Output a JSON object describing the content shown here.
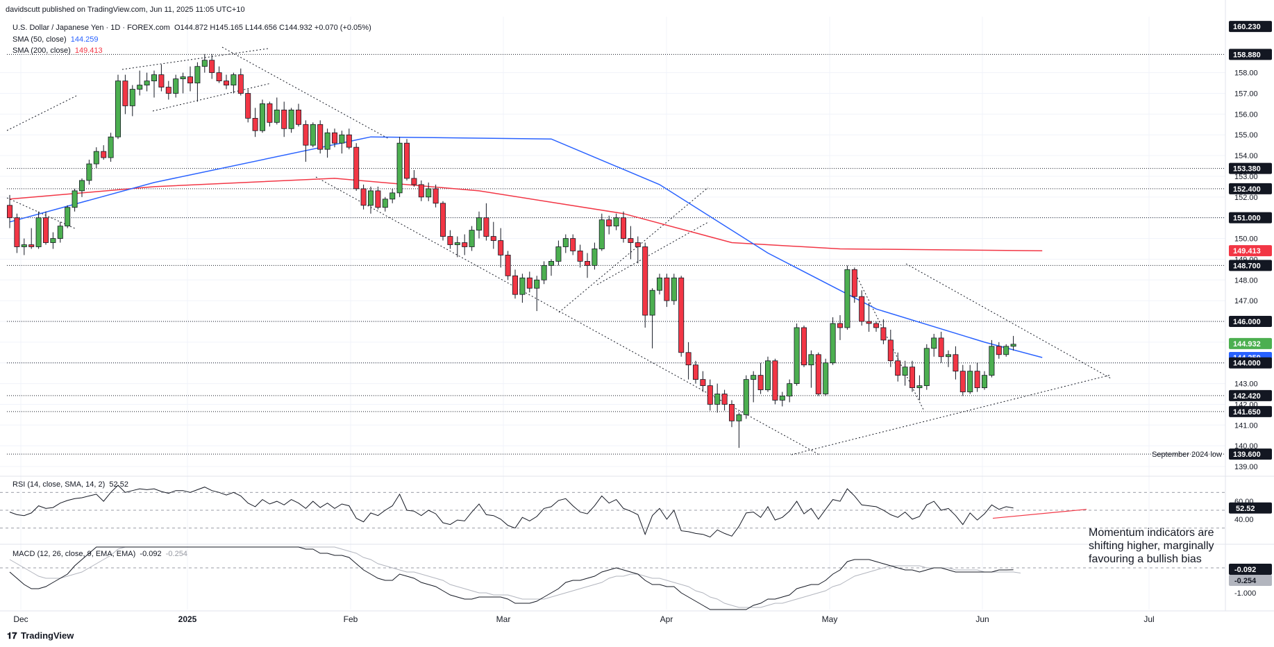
{
  "header": {
    "published": "davidscutt published on TradingView.com, Jun 11, 2025 11:05 UTC+10",
    "symbol": "U.S. Dollar / Japanese Yen · 1D · FOREX.com",
    "ohlc": "O144.872  H145.165  L144.656  C144.932  +0.070 (+0.05%)",
    "sma50_label": "SMA (50, close)",
    "sma50_value": "144.259",
    "sma200_label": "SMA (200, close)",
    "sma200_value": "149.413"
  },
  "rsi_label": "RSI (14, close, SMA, 14, 2)",
  "rsi_value": "52.52",
  "macd_label": "MACD (12, 26, close, 9, EMA, EMA)",
  "macd_value": "-0.092",
  "macd_signal_value": "-0.254",
  "note": "Momentum indicators are shifting higher, marginally favouring a bullish bias",
  "footer": "TradingView",
  "colors": {
    "up": "#4caf50",
    "down": "#f23645",
    "sma50": "#2962ff",
    "sma200": "#f23645",
    "rsi": "#131722",
    "macd": "#131722",
    "signal": "#b2b5be"
  },
  "chart_data": {
    "type": "candlestick",
    "price_axis_ticks": [
      139.0,
      140.0,
      141.0,
      142.0,
      143.0,
      144.0,
      145.0,
      146.0,
      147.0,
      148.0,
      149.0,
      150.0,
      151.0,
      152.0,
      153.0,
      154.0,
      155.0,
      156.0,
      157.0,
      158.0
    ],
    "price_range": [
      138.8,
      160.5
    ],
    "x_ticks": [
      "Dec",
      "2025",
      "Feb",
      "Mar",
      "Apr",
      "May",
      "Jun",
      "Jul"
    ],
    "price_labels": [
      {
        "value": 160.23,
        "text": "160.230"
      },
      {
        "value": 158.88,
        "text": "158.880"
      },
      {
        "value": 153.38,
        "text": "153.380"
      },
      {
        "value": 152.4,
        "text": "152.400"
      },
      {
        "value": 151.0,
        "text": "151.000"
      },
      {
        "value": 149.413,
        "text": "149.413",
        "highlight": "sma200"
      },
      {
        "value": 148.7,
        "text": "148.700"
      },
      {
        "value": 146.0,
        "text": "146.000"
      },
      {
        "value": 144.932,
        "text": "144.932",
        "highlight": "up"
      },
      {
        "value": 144.259,
        "text": "144.259",
        "highlight": "sma50"
      },
      {
        "value": 144.0,
        "text": "144.000"
      },
      {
        "value": 142.42,
        "text": "142.420"
      },
      {
        "value": 141.65,
        "text": "141.650"
      },
      {
        "value": 139.6,
        "text": "139.600"
      }
    ],
    "horizontal_levels": [
      158.88,
      153.38,
      152.4,
      151.0,
      148.7,
      146.0,
      144.0,
      142.42,
      141.65,
      139.6
    ],
    "annotation": {
      "text": "September 2024 low",
      "value": 139.6
    },
    "rsi_axis": [
      "60.00",
      "40.00"
    ],
    "rsi_current_label": "52.52",
    "macd_axis": [
      "-1.000"
    ],
    "macd_labels": [
      "-0.092",
      "-0.254"
    ],
    "candles": [
      [
        151.6,
        152.1,
        150.5,
        151.0
      ],
      [
        151.0,
        151.2,
        149.3,
        149.6
      ],
      [
        149.6,
        150.0,
        149.2,
        149.7
      ],
      [
        149.7,
        150.5,
        149.5,
        149.6
      ],
      [
        149.6,
        151.3,
        149.5,
        151.0
      ],
      [
        151.0,
        151.3,
        149.7,
        149.8
      ],
      [
        149.8,
        150.3,
        149.5,
        150.0
      ],
      [
        150.0,
        150.8,
        149.8,
        150.6
      ],
      [
        150.6,
        151.6,
        150.5,
        151.5
      ],
      [
        151.5,
        152.4,
        151.3,
        152.3
      ],
      [
        152.3,
        152.9,
        152.0,
        152.8
      ],
      [
        152.8,
        153.8,
        152.6,
        153.6
      ],
      [
        153.6,
        154.4,
        153.4,
        154.2
      ],
      [
        154.2,
        154.5,
        153.8,
        153.9
      ],
      [
        153.9,
        155.1,
        153.7,
        154.9
      ],
      [
        154.9,
        157.9,
        154.8,
        157.6
      ],
      [
        157.6,
        157.9,
        156.0,
        156.4
      ],
      [
        156.4,
        157.4,
        155.9,
        157.2
      ],
      [
        157.2,
        158.1,
        156.9,
        157.4
      ],
      [
        157.4,
        158.0,
        157.1,
        157.6
      ],
      [
        157.6,
        158.1,
        156.8,
        157.9
      ],
      [
        157.9,
        158.4,
        157.1,
        157.3
      ],
      [
        157.3,
        157.6,
        156.7,
        157.0
      ],
      [
        157.0,
        157.9,
        156.8,
        157.7
      ],
      [
        157.7,
        158.0,
        157.0,
        157.8
      ],
      [
        157.8,
        158.3,
        157.1,
        157.5
      ],
      [
        157.5,
        158.5,
        156.6,
        158.3
      ],
      [
        158.3,
        158.9,
        158.0,
        158.6
      ],
      [
        158.6,
        158.9,
        157.7,
        158.0
      ],
      [
        158.0,
        158.3,
        157.5,
        157.6
      ],
      [
        157.6,
        157.9,
        157.2,
        157.4
      ],
      [
        157.4,
        158.0,
        157.0,
        157.9
      ],
      [
        157.9,
        158.2,
        156.9,
        157.0
      ],
      [
        157.0,
        157.2,
        155.6,
        155.8
      ],
      [
        155.8,
        156.3,
        154.9,
        155.2
      ],
      [
        155.2,
        156.7,
        155.1,
        156.5
      ],
      [
        156.5,
        156.6,
        155.4,
        155.6
      ],
      [
        155.6,
        156.8,
        155.5,
        156.2
      ],
      [
        156.2,
        156.6,
        154.9,
        155.3
      ],
      [
        155.3,
        156.3,
        155.1,
        156.2
      ],
      [
        156.2,
        156.5,
        155.4,
        155.5
      ],
      [
        155.5,
        155.7,
        153.7,
        154.5
      ],
      [
        154.5,
        155.6,
        154.4,
        155.5
      ],
      [
        155.5,
        155.7,
        154.1,
        154.3
      ],
      [
        154.3,
        155.3,
        153.9,
        155.1
      ],
      [
        155.1,
        155.3,
        154.4,
        154.6
      ],
      [
        154.6,
        155.2,
        154.1,
        155.0
      ],
      [
        155.0,
        155.3,
        154.3,
        154.4
      ],
      [
        154.4,
        154.6,
        152.3,
        152.4
      ],
      [
        152.4,
        152.6,
        151.4,
        151.6
      ],
      [
        151.6,
        152.5,
        151.2,
        152.3
      ],
      [
        152.3,
        152.5,
        151.4,
        151.5
      ],
      [
        151.5,
        152.0,
        151.3,
        151.9
      ],
      [
        151.9,
        152.4,
        151.7,
        152.2
      ],
      [
        152.2,
        154.9,
        152.0,
        154.6
      ],
      [
        154.6,
        154.8,
        152.8,
        152.9
      ],
      [
        152.9,
        153.3,
        152.5,
        152.6
      ],
      [
        152.6,
        152.8,
        151.8,
        152.0
      ],
      [
        152.0,
        152.7,
        151.8,
        152.4
      ],
      [
        152.4,
        152.6,
        151.5,
        151.7
      ],
      [
        151.7,
        151.8,
        149.9,
        150.1
      ],
      [
        150.1,
        150.4,
        149.5,
        149.7
      ],
      [
        149.7,
        150.1,
        149.1,
        149.8
      ],
      [
        149.8,
        150.2,
        149.2,
        149.6
      ],
      [
        149.6,
        150.6,
        149.4,
        150.4
      ],
      [
        150.4,
        151.3,
        150.0,
        151.0
      ],
      [
        151.0,
        151.7,
        149.9,
        150.1
      ],
      [
        150.1,
        150.8,
        149.5,
        149.9
      ],
      [
        149.9,
        150.5,
        148.6,
        149.2
      ],
      [
        149.2,
        149.4,
        148.0,
        148.2
      ],
      [
        148.2,
        148.5,
        147.1,
        147.3
      ],
      [
        147.3,
        148.3,
        146.9,
        148.1
      ],
      [
        148.1,
        148.4,
        147.4,
        147.6
      ],
      [
        147.6,
        148.2,
        146.5,
        148.0
      ],
      [
        148.0,
        148.9,
        147.8,
        148.7
      ],
      [
        148.7,
        149.0,
        148.2,
        148.9
      ],
      [
        148.9,
        149.9,
        148.7,
        149.6
      ],
      [
        149.6,
        150.2,
        149.3,
        150.0
      ],
      [
        150.0,
        150.2,
        149.2,
        149.4
      ],
      [
        149.4,
        149.7,
        148.6,
        148.9
      ],
      [
        148.9,
        149.3,
        148.1,
        148.7
      ],
      [
        148.7,
        149.8,
        148.5,
        149.5
      ],
      [
        149.5,
        151.2,
        149.4,
        150.9
      ],
      [
        150.9,
        151.1,
        150.2,
        150.6
      ],
      [
        150.6,
        151.2,
        150.4,
        151.0
      ],
      [
        151.0,
        151.3,
        149.8,
        150.0
      ],
      [
        150.0,
        150.6,
        149.0,
        149.8
      ],
      [
        149.8,
        150.1,
        148.8,
        149.6
      ],
      [
        149.6,
        149.8,
        145.7,
        146.3
      ],
      [
        146.3,
        147.6,
        144.7,
        147.5
      ],
      [
        147.5,
        148.3,
        147.3,
        148.1
      ],
      [
        148.1,
        148.3,
        146.7,
        147.0
      ],
      [
        147.0,
        148.3,
        146.8,
        148.1
      ],
      [
        148.1,
        148.2,
        144.3,
        144.5
      ],
      [
        144.5,
        145.0,
        143.2,
        143.9
      ],
      [
        143.9,
        144.1,
        143.0,
        143.2
      ],
      [
        143.2,
        143.6,
        142.6,
        142.9
      ],
      [
        142.9,
        143.2,
        141.7,
        142.0
      ],
      [
        142.0,
        143.0,
        141.6,
        142.5
      ],
      [
        142.5,
        142.7,
        141.7,
        142.0
      ],
      [
        142.0,
        142.2,
        140.9,
        141.2
      ],
      [
        141.2,
        141.6,
        139.9,
        141.5
      ],
      [
        141.5,
        143.4,
        141.3,
        143.2
      ],
      [
        143.2,
        143.6,
        142.1,
        143.4
      ],
      [
        143.4,
        144.0,
        142.5,
        142.7
      ],
      [
        142.7,
        144.3,
        142.6,
        144.1
      ],
      [
        144.1,
        144.2,
        142.0,
        142.2
      ],
      [
        142.2,
        142.6,
        141.9,
        142.4
      ],
      [
        142.4,
        143.2,
        142.1,
        143.0
      ],
      [
        143.0,
        145.9,
        142.9,
        145.7
      ],
      [
        145.7,
        145.8,
        143.8,
        143.9
      ],
      [
        143.9,
        144.6,
        142.8,
        144.4
      ],
      [
        144.4,
        144.5,
        142.4,
        142.5
      ],
      [
        142.5,
        144.2,
        142.4,
        144.0
      ],
      [
        144.0,
        146.2,
        143.9,
        145.9
      ],
      [
        145.9,
        146.3,
        145.1,
        145.7
      ],
      [
        145.7,
        148.7,
        145.6,
        148.5
      ],
      [
        148.5,
        148.6,
        146.9,
        147.2
      ],
      [
        147.2,
        147.5,
        145.8,
        146.0
      ],
      [
        146.0,
        146.9,
        145.5,
        145.9
      ],
      [
        145.9,
        146.0,
        145.5,
        145.7
      ],
      [
        145.7,
        146.1,
        144.9,
        145.1
      ],
      [
        145.1,
        145.6,
        143.8,
        144.1
      ],
      [
        144.1,
        144.5,
        143.1,
        143.4
      ],
      [
        143.4,
        144.1,
        142.9,
        143.8
      ],
      [
        143.8,
        144.1,
        142.6,
        142.8
      ],
      [
        142.8,
        143.4,
        142.2,
        142.9
      ],
      [
        142.9,
        144.9,
        142.7,
        144.7
      ],
      [
        144.7,
        145.4,
        144.3,
        145.2
      ],
      [
        145.2,
        145.5,
        144.0,
        144.3
      ],
      [
        144.3,
        144.6,
        143.8,
        144.4
      ],
      [
        144.4,
        144.8,
        143.2,
        143.6
      ],
      [
        143.6,
        143.9,
        142.4,
        142.6
      ],
      [
        142.6,
        143.9,
        142.5,
        143.6
      ],
      [
        143.6,
        144.0,
        142.6,
        142.8
      ],
      [
        142.8,
        143.6,
        142.7,
        143.4
      ],
      [
        143.4,
        145.1,
        143.3,
        144.8
      ],
      [
        144.8,
        145.0,
        144.2,
        144.4
      ],
      [
        144.4,
        144.9,
        144.3,
        144.8
      ],
      [
        144.8,
        145.3,
        144.6,
        144.9
      ]
    ],
    "sma50": [
      [
        0,
        150.8
      ],
      [
        20,
        152.7
      ],
      [
        50,
        154.9
      ],
      [
        75,
        154.8
      ],
      [
        90,
        152.6
      ],
      [
        105,
        149.3
      ],
      [
        120,
        146.6
      ],
      [
        135,
        145.0
      ],
      [
        143,
        144.26
      ]
    ],
    "sma200": [
      [
        0,
        151.9
      ],
      [
        20,
        152.5
      ],
      [
        45,
        152.9
      ],
      [
        65,
        152.3
      ],
      [
        85,
        151.2
      ],
      [
        100,
        149.8
      ],
      [
        115,
        149.5
      ],
      [
        143,
        149.41
      ]
    ],
    "rsi": [
      48,
      45,
      44,
      47,
      55,
      52,
      53,
      58,
      61,
      63,
      64,
      66,
      68,
      60,
      70,
      78,
      70,
      72,
      74,
      73,
      74,
      71,
      69,
      72,
      72,
      70,
      73,
      76,
      72,
      70,
      67,
      70,
      66,
      58,
      54,
      62,
      57,
      60,
      56,
      62,
      58,
      52,
      60,
      53,
      58,
      52,
      57,
      55,
      41,
      37,
      47,
      44,
      50,
      55,
      68,
      50,
      49,
      44,
      50,
      46,
      36,
      34,
      39,
      38,
      48,
      57,
      45,
      44,
      40,
      33,
      30,
      42,
      38,
      43,
      52,
      54,
      61,
      63,
      55,
      48,
      46,
      55,
      66,
      58,
      62,
      52,
      49,
      45,
      23,
      44,
      52,
      40,
      50,
      27,
      26,
      24,
      23,
      20,
      28,
      24,
      21,
      32,
      47,
      48,
      42,
      54,
      39,
      42,
      49,
      60,
      46,
      52,
      40,
      51,
      62,
      60,
      74,
      66,
      56,
      55,
      54,
      50,
      45,
      42,
      48,
      40,
      43,
      56,
      60,
      50,
      52,
      44,
      34,
      47,
      39,
      46,
      56,
      51,
      54,
      52.5
    ],
    "macd": [
      -0.2,
      -0.5,
      -0.8,
      -1.0,
      -1.0,
      -0.9,
      -0.7,
      -0.5,
      -0.3,
      0.1,
      0.4,
      0.7,
      1.0,
      1.2,
      1.4,
      1.9,
      2.1,
      2.3,
      2.4,
      2.5,
      2.6,
      2.6,
      2.5,
      2.6,
      2.6,
      2.6,
      2.7,
      2.8,
      2.8,
      2.7,
      2.6,
      2.6,
      2.4,
      2.1,
      1.8,
      1.7,
      1.5,
      1.4,
      1.2,
      1.2,
      1.1,
      0.9,
      0.9,
      0.7,
      0.7,
      0.6,
      0.6,
      0.5,
      0.2,
      -0.1,
      -0.3,
      -0.5,
      -0.6,
      -0.6,
      -0.3,
      -0.4,
      -0.5,
      -0.7,
      -0.8,
      -0.9,
      -1.1,
      -1.3,
      -1.4,
      -1.5,
      -1.5,
      -1.4,
      -1.4,
      -1.4,
      -1.4,
      -1.5,
      -1.7,
      -1.7,
      -1.7,
      -1.6,
      -1.4,
      -1.2,
      -1.0,
      -0.7,
      -0.6,
      -0.6,
      -0.5,
      -0.4,
      -0.2,
      -0.1,
      0.0,
      -0.1,
      -0.2,
      -0.3,
      -0.6,
      -0.8,
      -0.8,
      -0.9,
      -0.9,
      -1.2,
      -1.4,
      -1.6,
      -1.8,
      -2.0,
      -2.1,
      -2.2,
      -2.3,
      -2.2,
      -2.0,
      -1.8,
      -1.7,
      -1.5,
      -1.5,
      -1.4,
      -1.3,
      -1.0,
      -0.9,
      -0.8,
      -0.8,
      -0.6,
      -0.3,
      -0.1,
      0.3,
      0.4,
      0.4,
      0.4,
      0.3,
      0.2,
      0.1,
      0.0,
      -0.1,
      -0.1,
      -0.2,
      -0.1,
      0.0,
      0.0,
      -0.1,
      -0.2,
      -0.2,
      -0.2,
      -0.2,
      -0.2,
      -0.2,
      -0.1,
      -0.1,
      -0.092
    ],
    "signal": [
      0.4,
      0.2,
      0.0,
      -0.2,
      -0.4,
      -0.5,
      -0.5,
      -0.5,
      -0.4,
      -0.3,
      -0.2,
      0.0,
      0.2,
      0.4,
      0.6,
      0.9,
      1.1,
      1.4,
      1.6,
      1.8,
      1.9,
      2.0,
      2.1,
      2.2,
      2.3,
      2.3,
      2.4,
      2.5,
      2.5,
      2.5,
      2.5,
      2.5,
      2.5,
      2.4,
      2.3,
      2.2,
      2.0,
      1.9,
      1.8,
      1.7,
      1.6,
      1.4,
      1.3,
      1.2,
      1.1,
      1.0,
      0.9,
      0.8,
      0.7,
      0.5,
      0.4,
      0.2,
      0.1,
      0.0,
      -0.1,
      -0.2,
      -0.2,
      -0.3,
      -0.4,
      -0.5,
      -0.6,
      -0.8,
      -0.9,
      -1.0,
      -1.1,
      -1.2,
      -1.2,
      -1.3,
      -1.3,
      -1.3,
      -1.4,
      -1.5,
      -1.5,
      -1.5,
      -1.5,
      -1.4,
      -1.3,
      -1.2,
      -1.1,
      -1.0,
      -0.9,
      -0.8,
      -0.7,
      -0.5,
      -0.4,
      -0.4,
      -0.3,
      -0.3,
      -0.4,
      -0.5,
      -0.5,
      -0.6,
      -0.7,
      -0.8,
      -0.9,
      -1.1,
      -1.2,
      -1.4,
      -1.5,
      -1.7,
      -1.8,
      -1.9,
      -1.9,
      -1.9,
      -1.9,
      -1.8,
      -1.7,
      -1.7,
      -1.6,
      -1.5,
      -1.4,
      -1.3,
      -1.2,
      -1.1,
      -0.9,
      -0.8,
      -0.6,
      -0.4,
      -0.3,
      -0.2,
      -0.1,
      0.0,
      0.1,
      0.1,
      0.1,
      0.1,
      0.1,
      0.0,
      0.0,
      0.0,
      0.0,
      -0.1,
      -0.1,
      -0.1,
      -0.1,
      -0.2,
      -0.2,
      -0.2,
      -0.2,
      -0.2,
      -0.25
    ]
  }
}
